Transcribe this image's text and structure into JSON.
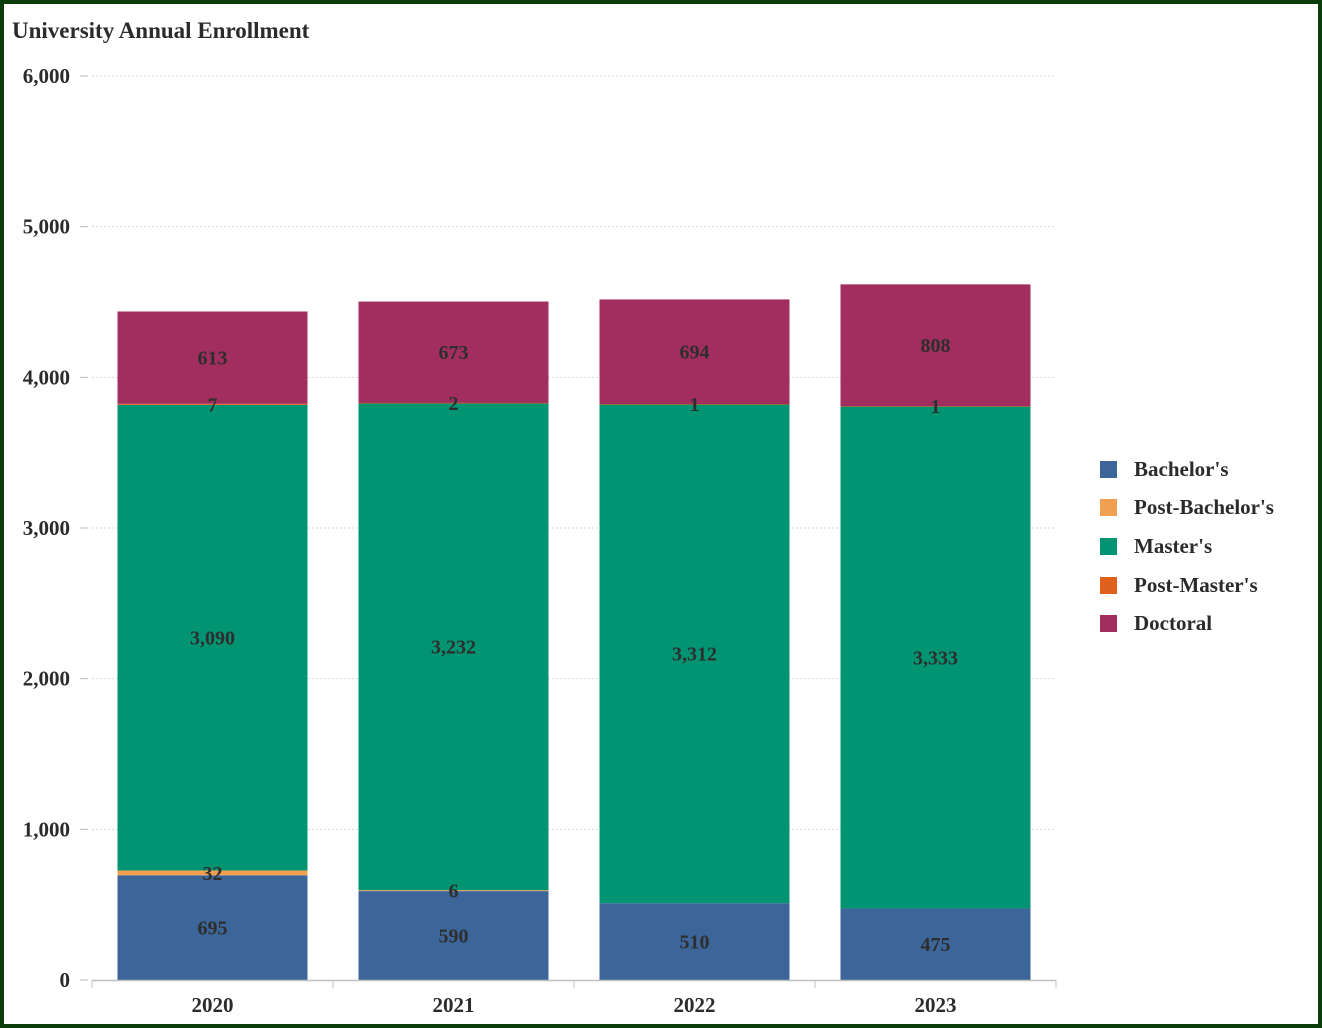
{
  "chart_data": {
    "type": "bar",
    "stacked": true,
    "title": "University Annual Enrollment",
    "xlabel": "",
    "ylabel": "",
    "categories": [
      "2020",
      "2021",
      "2022",
      "2023"
    ],
    "ylim": [
      0,
      6000
    ],
    "yticks": [
      "0",
      "1,000",
      "2,000",
      "3,000",
      "4,000",
      "5,000",
      "6,000"
    ],
    "grid": true,
    "legend_position": "right",
    "series": [
      {
        "name": "Bachelor's",
        "color": "#3c6699",
        "values": [
          695,
          590,
          510,
          475
        ],
        "labels": [
          "695",
          "590",
          "510",
          "475"
        ]
      },
      {
        "name": "Post-Bachelor's",
        "color": "#f0a050",
        "values": [
          32,
          6,
          0,
          0
        ],
        "labels": [
          "32",
          "6",
          "",
          ""
        ]
      },
      {
        "name": "Master's",
        "color": "#009473",
        "values": [
          3090,
          3232,
          3312,
          3333
        ],
        "labels": [
          "3,090",
          "3,232",
          "3,312",
          "3,333"
        ]
      },
      {
        "name": "Post-Master's",
        "color": "#e0601e",
        "values": [
          7,
          2,
          1,
          1
        ],
        "labels": [
          "7",
          "2",
          "1",
          "1"
        ]
      },
      {
        "name": "Doctoral",
        "color": "#a22e5f",
        "values": [
          613,
          673,
          694,
          808
        ],
        "labels": [
          "613",
          "673",
          "694",
          "808"
        ]
      }
    ]
  }
}
